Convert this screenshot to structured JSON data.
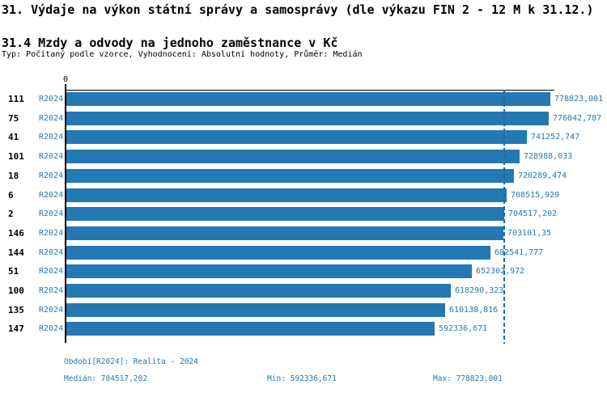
{
  "header": {
    "title": "31. Výdaje na výkon státní správy a samosprávy (dle výkazu FIN 2 - 12 M k 31.12.)",
    "subtitle": "31.4 Mzdy a odvody na jednoho zaměstnance v Kč",
    "meta": "Typ: Počítaný podle vzorce, Vyhodnocení: Absolutní hodnoty, Průměr: Medián"
  },
  "chart_data": {
    "type": "bar",
    "orientation": "horizontal",
    "title": "31.4 Mzdy a odvody na jednoho zaměstnance v Kč",
    "x_axis_origin_label": "0",
    "xlim": [
      0,
      785000
    ],
    "grid": false,
    "legend_position": "none",
    "categories": [
      "111",
      "75",
      "41",
      "101",
      "18",
      "6",
      "2",
      "146",
      "144",
      "51",
      "100",
      "135",
      "147"
    ],
    "series_label": "R2024",
    "series": [
      {
        "name": "R2024",
        "values": [
          778823.001,
          776042.787,
          741252.747,
          728988.033,
          720289.474,
          708515.929,
          704517.202,
          703101.35,
          682541.777,
          652302.972,
          618290.323,
          610138.816,
          592336.671
        ]
      }
    ],
    "value_labels": [
      "778823,001",
      "776042,787",
      "741252,747",
      "728988,033",
      "720289,474",
      "708515,929",
      "704517,202",
      "703101,35",
      "682541,777",
      "652302,972",
      "618290,323",
      "610138,816",
      "592336,671"
    ],
    "median_value": 704517.202,
    "annotations": {
      "median_line": "vertical dashed line at median value"
    },
    "colors": {
      "bar": "#2478b4",
      "label_text": "#2478b4",
      "category_text": "#000000",
      "axis": "#000000",
      "median_line": "#1e6ba0"
    }
  },
  "footer": {
    "period": "Období[R2024]: Realita - 2024",
    "median": "Medián: 704517,202",
    "min": "Min: 592336,671",
    "max": "Max: 778823,001"
  }
}
